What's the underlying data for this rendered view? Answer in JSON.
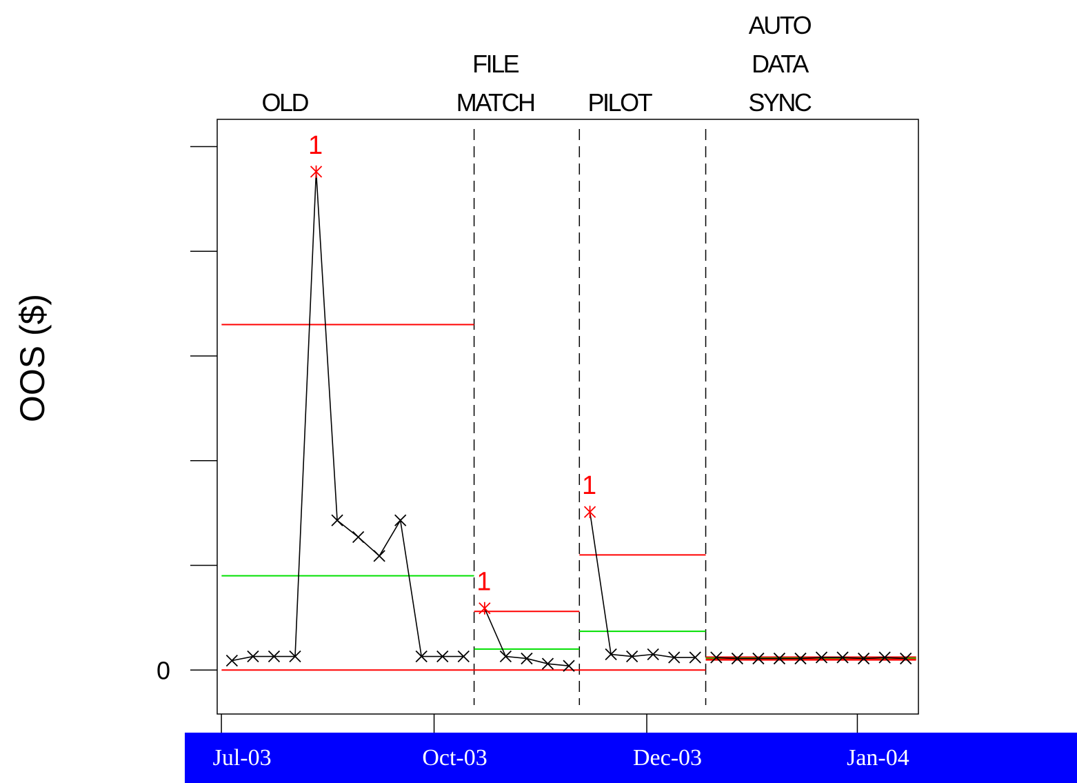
{
  "colors": {
    "data_line": "#000000",
    "limit_line": "#ff0000",
    "center_line": "#00e000",
    "out_of_control": "#ff0000",
    "date_bar": "#0000ff",
    "date_text": "#ffffff"
  },
  "chart_data": {
    "type": "line",
    "title": "",
    "xlabel": "",
    "ylabel": "OOS ($)",
    "y_ticks": [
      0,
      1,
      2,
      3,
      4,
      5
    ],
    "y_tick_labels": [
      "0",
      "",
      "",
      "",
      "",
      ""
    ],
    "ylim": [
      -0.42,
      5.26
    ],
    "xlim": [
      0.3,
      33.6
    ],
    "x_date_labels": [
      {
        "label": "Jul-03",
        "x": 0.5
      },
      {
        "label": "Oct-03",
        "x": 10.6
      },
      {
        "label": "Dec-03",
        "x": 20.7
      },
      {
        "label": "Jan-04",
        "x": 30.7
      }
    ],
    "phases": [
      {
        "label_lines": [
          "OLD"
        ],
        "x_start": 0.5,
        "x_end": 12.5,
        "center_x": 3.5
      },
      {
        "label_lines": [
          "FILE",
          "MATCH"
        ],
        "x_start": 12.5,
        "x_end": 17.5,
        "center_x": 13.5
      },
      {
        "label_lines": [
          "PILOT"
        ],
        "x_start": 17.5,
        "x_end": 23.5,
        "center_x": 19.4
      },
      {
        "label_lines": [
          "AUTO",
          "DATA",
          "SYNC"
        ],
        "x_start": 23.5,
        "x_end": 33.5,
        "center_x": 27.0
      }
    ],
    "phase_boundaries": [
      12.5,
      17.5,
      23.5
    ],
    "limits": [
      {
        "phase": "OLD",
        "center": 0.9,
        "ucl": 3.3,
        "lcl": 0.0
      },
      {
        "phase": "FILE MATCH",
        "center": 0.2,
        "ucl": 0.56,
        "lcl": 0.0
      },
      {
        "phase": "PILOT",
        "center": 0.37,
        "ucl": 1.1,
        "lcl": 0.0
      },
      {
        "phase": "AUTO DATA SYNC",
        "center": 0.11,
        "ucl": 0.12,
        "lcl": 0.1
      }
    ],
    "series": [
      {
        "x": [
          1,
          2,
          3,
          4,
          5,
          6,
          7,
          8,
          9,
          10,
          11,
          12,
          13,
          14,
          15,
          16,
          17,
          18,
          19,
          20,
          21,
          22,
          23,
          24,
          25,
          26,
          27,
          28,
          29,
          30,
          31,
          32,
          33
        ],
        "values": [
          0.09,
          0.13,
          0.13,
          0.13,
          4.76,
          1.43,
          1.27,
          1.09,
          1.43,
          0.13,
          0.13,
          0.13,
          0.59,
          0.13,
          0.11,
          0.06,
          0.04,
          1.51,
          0.15,
          0.13,
          0.15,
          0.12,
          0.12,
          0.12,
          0.11,
          0.11,
          0.11,
          0.11,
          0.12,
          0.12,
          0.11,
          0.12,
          0.11
        ],
        "out_of_control": [
          5,
          13,
          18
        ],
        "flag_label": "1"
      }
    ],
    "grid": false
  }
}
